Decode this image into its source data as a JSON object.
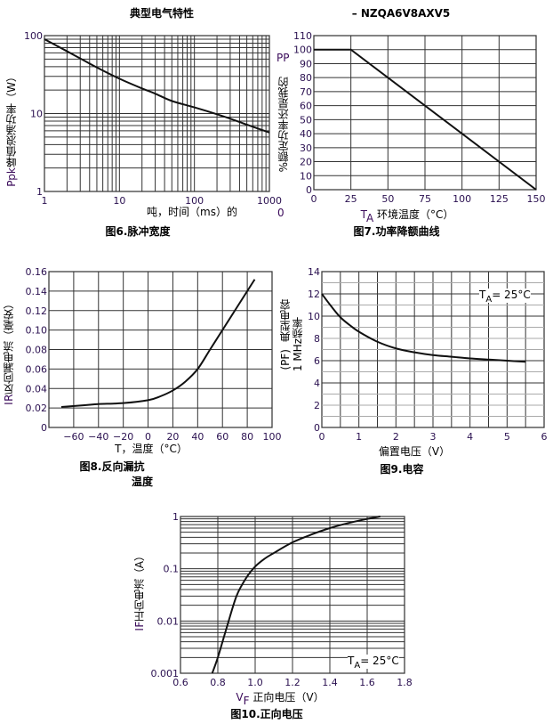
{
  "header": {
    "title": "典型电气特性",
    "part": "– NZQA6V8AXV5"
  },
  "chart_data": [
    {
      "type": "line",
      "title": "图6.脉冲宽度",
      "xlabel": "吨，时间（ms）的",
      "ylabel": {
        "symbol": "P",
        "sub": "pk",
        "text": "峰值浪涌功率（W）"
      },
      "xscale": "log",
      "yscale": "log",
      "xlim": [
        1,
        1000
      ],
      "ylim": [
        1,
        100
      ],
      "xticks": [
        1,
        10,
        100,
        1000
      ],
      "xticklabels": [
        "1",
        "10",
        "100",
        "1000"
      ],
      "yticks": [
        1,
        10,
        100
      ],
      "yticklabels": [
        "1",
        "10",
        "100"
      ],
      "grid": true,
      "series": [
        {
          "name": "Ppk",
          "x": [
            1,
            2,
            3,
            5,
            10,
            20,
            30,
            50,
            100,
            200,
            300,
            500,
            1000
          ],
          "y": [
            90,
            63,
            51,
            39,
            28,
            21,
            18,
            14.5,
            12,
            9.8,
            8.6,
            7.2,
            5.7
          ]
        }
      ]
    },
    {
      "type": "line",
      "title": "图7.功率降额曲线",
      "xlabel": {
        "symbol": "T",
        "sub": "A",
        "text": "环境温度（°C）"
      },
      "ylabel": {
        "symbol": "PP",
        "text": "%额定功率还是我的"
      },
      "stray_label": "0",
      "xlim": [
        0,
        150
      ],
      "ylim": [
        0,
        110
      ],
      "xticks": [
        0,
        25,
        50,
        75,
        100,
        125,
        150
      ],
      "xticklabels": [
        "0",
        "25",
        "50",
        "75",
        "100",
        "125",
        "150"
      ],
      "yticks": [
        0,
        10,
        20,
        30,
        40,
        50,
        60,
        70,
        80,
        90,
        100,
        110
      ],
      "yticklabels": [
        "0",
        "10",
        "20",
        "30",
        "40",
        "50",
        "60",
        "70",
        "80",
        "90",
        "100",
        "110"
      ],
      "grid": true,
      "series": [
        {
          "name": "derating",
          "x": [
            0,
            25,
            150
          ],
          "y": [
            100,
            100,
            0
          ]
        }
      ]
    },
    {
      "type": "line",
      "title": "图8.反向漏抗",
      "title2": "温度",
      "xlabel": "T，温度（°C）",
      "ylabel": {
        "symbol": "I",
        "sub": "R",
        "text": "反向漏电流（毫安）"
      },
      "xlim": [
        -80,
        100
      ],
      "ylim": [
        0,
        0.16
      ],
      "xticks": [
        -60,
        -40,
        -20,
        0,
        20,
        40,
        60,
        80,
        100
      ],
      "xticklabels": [
        "−60",
        "−40",
        "−20",
        "0",
        "20",
        "40",
        "60",
        "80",
        "100"
      ],
      "yticks": [
        0,
        0.02,
        0.04,
        0.06,
        0.08,
        0.1,
        0.12,
        0.14,
        0.16
      ],
      "yticklabels": [
        "0",
        "0.02",
        "0.04",
        "0.06",
        "0.08",
        "0.10",
        "0.12",
        "0.14",
        "0.16"
      ],
      "grid": true,
      "series": [
        {
          "name": "IR",
          "x": [
            -70,
            -50,
            -40,
            -20,
            0,
            10,
            20,
            30,
            40,
            50,
            60,
            70,
            80,
            86
          ],
          "y": [
            0.021,
            0.023,
            0.024,
            0.025,
            0.028,
            0.032,
            0.038,
            0.047,
            0.06,
            0.08,
            0.1,
            0.12,
            0.14,
            0.152
          ]
        }
      ]
    },
    {
      "type": "line",
      "title": "图9.电容",
      "xlabel": "偏置电压（V）",
      "ylabel": {
        "unit": "(PF)",
        "text": "典型电容",
        "note": "1 MHz频率"
      },
      "annotation": {
        "symbol": "T",
        "sub": "A",
        "text": "= 25°C"
      },
      "xlim": [
        0,
        6
      ],
      "ylim": [
        0,
        14
      ],
      "xticks": [
        0,
        1,
        2,
        3,
        4,
        5,
        6
      ],
      "xticklabels": [
        "0",
        "1",
        "2",
        "3",
        "4",
        "5",
        "6"
      ],
      "yticks": [
        0,
        2,
        4,
        6,
        8,
        10,
        12,
        14
      ],
      "yticklabels": [
        "0",
        "2",
        "4",
        "6",
        "8",
        "10",
        "12",
        "14"
      ],
      "grid": true,
      "series": [
        {
          "name": "C",
          "x": [
            0,
            0.25,
            0.5,
            0.75,
            1,
            1.5,
            2,
            2.5,
            3,
            3.5,
            4,
            4.5,
            5,
            5.5
          ],
          "y": [
            12,
            10.9,
            9.9,
            9.2,
            8.6,
            7.7,
            7.1,
            6.75,
            6.5,
            6.35,
            6.2,
            6.1,
            6.0,
            5.9
          ]
        }
      ]
    },
    {
      "type": "line",
      "title": "图10.正向电压",
      "xlabel": {
        "symbol": "V",
        "sub": "F",
        "text": "正向电压（V）"
      },
      "ylabel": {
        "symbol": "I",
        "sub": "F",
        "text": "正向电流（A）"
      },
      "annotation": {
        "symbol": "T",
        "sub": "A",
        "text": "= 25°C"
      },
      "yscale": "log",
      "xlim": [
        0.6,
        1.8
      ],
      "ylim": [
        0.001,
        1
      ],
      "xticks": [
        0.6,
        0.8,
        1.0,
        1.2,
        1.4,
        1.6,
        1.8
      ],
      "xticklabels": [
        "0.6",
        "0.8",
        "1.0",
        "1.2",
        "1.4",
        "1.6",
        "1.8"
      ],
      "yticks": [
        0.001,
        0.01,
        0.1,
        1
      ],
      "yticklabels": [
        "0.001",
        "0.01",
        "0.1",
        "1"
      ],
      "grid": true,
      "series": [
        {
          "name": "IF",
          "x": [
            0.77,
            0.8,
            0.85,
            0.9,
            0.95,
            1.0,
            1.05,
            1.1,
            1.2,
            1.3,
            1.4,
            1.5,
            1.6,
            1.67
          ],
          "y": [
            0.001,
            0.002,
            0.008,
            0.03,
            0.065,
            0.11,
            0.155,
            0.2,
            0.32,
            0.45,
            0.6,
            0.75,
            0.9,
            1.0
          ]
        }
      ]
    }
  ]
}
